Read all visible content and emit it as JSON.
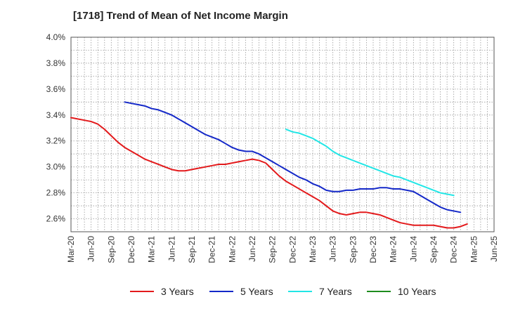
{
  "title": "[1718]  Trend of Mean of Net Income Margin",
  "chart_data": {
    "type": "line",
    "title": "[1718]  Trend of Mean of Net Income Margin",
    "xlabel": "",
    "ylabel": "",
    "y_unit": "%",
    "ylim": [
      2.5,
      4.0
    ],
    "y_ticks": [
      "2.6%",
      "2.8%",
      "3.0%",
      "3.2%",
      "3.4%",
      "3.6%",
      "3.8%",
      "4.0%"
    ],
    "y_tick_values": [
      2.6,
      2.8,
      3.0,
      3.2,
      3.4,
      3.6,
      3.8,
      4.0
    ],
    "x_ticks": [
      "Mar-20",
      "Jun-20",
      "Sep-20",
      "Dec-20",
      "Mar-21",
      "Jun-21",
      "Sep-21",
      "Dec-21",
      "Mar-22",
      "Jun-22",
      "Sep-22",
      "Dec-22",
      "Mar-23",
      "Jun-23",
      "Sep-23",
      "Dec-23",
      "Mar-24",
      "Jun-24",
      "Sep-24",
      "Dec-24",
      "Mar-25",
      "Jun-25"
    ],
    "grid": true,
    "legend_position": "bottom",
    "series": [
      {
        "name": "3 Years",
        "color": "#e31a1c",
        "start": "Mar-20",
        "values": [
          3.38,
          3.37,
          3.36,
          3.35,
          3.33,
          3.29,
          3.24,
          3.19,
          3.15,
          3.12,
          3.09,
          3.06,
          3.04,
          3.02,
          3.0,
          2.98,
          2.97,
          2.97,
          2.98,
          2.99,
          3.0,
          3.01,
          3.02,
          3.02,
          3.03,
          3.04,
          3.05,
          3.06,
          3.05,
          3.03,
          2.98,
          2.93,
          2.89,
          2.86,
          2.83,
          2.8,
          2.77,
          2.74,
          2.7,
          2.66,
          2.64,
          2.63,
          2.64,
          2.65,
          2.65,
          2.64,
          2.63,
          2.61,
          2.59,
          2.57,
          2.56,
          2.55,
          2.55,
          2.55,
          2.55,
          2.54,
          2.53,
          2.53,
          2.54,
          2.56
        ]
      },
      {
        "name": "5 Years",
        "color": "#1428c8",
        "start": "Nov-20",
        "values": [
          3.5,
          3.49,
          3.48,
          3.47,
          3.45,
          3.44,
          3.42,
          3.4,
          3.37,
          3.34,
          3.31,
          3.28,
          3.25,
          3.23,
          3.21,
          3.18,
          3.15,
          3.13,
          3.12,
          3.12,
          3.1,
          3.07,
          3.04,
          3.01,
          2.98,
          2.95,
          2.92,
          2.9,
          2.87,
          2.85,
          2.82,
          2.81,
          2.81,
          2.82,
          2.82,
          2.83,
          2.83,
          2.83,
          2.84,
          2.84,
          2.83,
          2.83,
          2.82,
          2.81,
          2.78,
          2.75,
          2.72,
          2.69,
          2.67,
          2.66,
          2.65
        ]
      },
      {
        "name": "7 Years",
        "color": "#22e6e6",
        "start": "Nov-22",
        "values": [
          3.29,
          3.27,
          3.26,
          3.24,
          3.22,
          3.19,
          3.16,
          3.12,
          3.09,
          3.07,
          3.05,
          3.03,
          3.01,
          2.99,
          2.97,
          2.95,
          2.93,
          2.92,
          2.9,
          2.88,
          2.86,
          2.84,
          2.82,
          2.8,
          2.79,
          2.78
        ]
      },
      {
        "name": "10 Years",
        "color": "#1e8c1e",
        "start": "Mar-20",
        "values": []
      }
    ]
  }
}
